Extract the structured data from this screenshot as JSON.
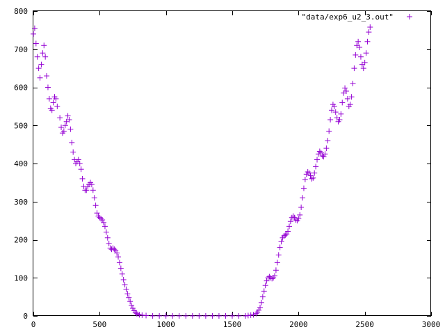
{
  "chart_data": {
    "type": "scatter",
    "title": "",
    "xlabel": "",
    "ylabel": "",
    "xlim": [
      0,
      3000
    ],
    "ylim": [
      0,
      800
    ],
    "x_ticks": [
      0,
      500,
      1000,
      1500,
      2000,
      2500,
      3000
    ],
    "y_ticks": [
      0,
      100,
      200,
      300,
      400,
      500,
      600,
      700,
      800
    ],
    "x_tick_labels": [
      "0",
      "500",
      "1000",
      "1500",
      "2000",
      "2500",
      "3000"
    ],
    "y_tick_labels": [
      "0",
      "100",
      "200",
      "300",
      "400",
      "500",
      "600",
      "700",
      "800"
    ],
    "grid": false,
    "legend_position": "top-right",
    "marker": "plus",
    "series": [
      {
        "name": "\"data/exp6_u2_3.out\"",
        "color": "#9400d3",
        "points": [
          [
            0,
            740
          ],
          [
            10,
            755
          ],
          [
            20,
            715
          ],
          [
            30,
            680
          ],
          [
            40,
            650
          ],
          [
            50,
            625
          ],
          [
            60,
            660
          ],
          [
            70,
            690
          ],
          [
            80,
            710
          ],
          [
            90,
            680
          ],
          [
            100,
            630
          ],
          [
            110,
            600
          ],
          [
            120,
            570
          ],
          [
            130,
            545
          ],
          [
            140,
            540
          ],
          [
            150,
            560
          ],
          [
            160,
            575
          ],
          [
            170,
            570
          ],
          [
            180,
            550
          ],
          [
            200,
            520
          ],
          [
            210,
            495
          ],
          [
            220,
            480
          ],
          [
            230,
            485
          ],
          [
            240,
            500
          ],
          [
            250,
            510
          ],
          [
            260,
            525
          ],
          [
            270,
            515
          ],
          [
            280,
            490
          ],
          [
            290,
            455
          ],
          [
            300,
            430
          ],
          [
            310,
            410
          ],
          [
            320,
            400
          ],
          [
            330,
            405
          ],
          [
            340,
            410
          ],
          [
            350,
            400
          ],
          [
            360,
            385
          ],
          [
            370,
            360
          ],
          [
            380,
            340
          ],
          [
            390,
            330
          ],
          [
            400,
            330
          ],
          [
            410,
            340
          ],
          [
            420,
            345
          ],
          [
            430,
            350
          ],
          [
            440,
            345
          ],
          [
            450,
            330
          ],
          [
            460,
            310
          ],
          [
            470,
            290
          ],
          [
            480,
            270
          ],
          [
            490,
            262
          ],
          [
            500,
            258
          ],
          [
            510,
            255
          ],
          [
            520,
            252
          ],
          [
            530,
            245
          ],
          [
            540,
            235
          ],
          [
            550,
            220
          ],
          [
            560,
            205
          ],
          [
            570,
            190
          ],
          [
            580,
            178
          ],
          [
            590,
            175
          ],
          [
            600,
            178
          ],
          [
            610,
            175
          ],
          [
            620,
            172
          ],
          [
            630,
            165
          ],
          [
            640,
            155
          ],
          [
            650,
            140
          ],
          [
            660,
            125
          ],
          [
            670,
            110
          ],
          [
            680,
            95
          ],
          [
            690,
            82
          ],
          [
            700,
            70
          ],
          [
            710,
            58
          ],
          [
            720,
            48
          ],
          [
            730,
            38
          ],
          [
            740,
            28
          ],
          [
            750,
            20
          ],
          [
            760,
            14
          ],
          [
            770,
            9
          ],
          [
            780,
            6
          ],
          [
            790,
            4
          ],
          [
            800,
            3
          ],
          [
            820,
            2
          ],
          [
            850,
            1
          ],
          [
            900,
            0
          ],
          [
            950,
            0
          ],
          [
            1000,
            0
          ],
          [
            1050,
            0
          ],
          [
            1100,
            0
          ],
          [
            1150,
            0
          ],
          [
            1200,
            0
          ],
          [
            1250,
            0
          ],
          [
            1300,
            0
          ],
          [
            1350,
            0
          ],
          [
            1400,
            0
          ],
          [
            1450,
            0
          ],
          [
            1500,
            0
          ],
          [
            1550,
            0
          ],
          [
            1600,
            0
          ],
          [
            1620,
            1
          ],
          [
            1640,
            2
          ],
          [
            1660,
            3
          ],
          [
            1680,
            6
          ],
          [
            1690,
            10
          ],
          [
            1700,
            15
          ],
          [
            1710,
            22
          ],
          [
            1720,
            35
          ],
          [
            1730,
            50
          ],
          [
            1740,
            65
          ],
          [
            1750,
            80
          ],
          [
            1760,
            92
          ],
          [
            1770,
            100
          ],
          [
            1780,
            103
          ],
          [
            1790,
            100
          ],
          [
            1800,
            98
          ],
          [
            1810,
            100
          ],
          [
            1820,
            105
          ],
          [
            1830,
            120
          ],
          [
            1840,
            140
          ],
          [
            1850,
            160
          ],
          [
            1860,
            180
          ],
          [
            1870,
            195
          ],
          [
            1880,
            205
          ],
          [
            1890,
            210
          ],
          [
            1900,
            212
          ],
          [
            1910,
            215
          ],
          [
            1920,
            222
          ],
          [
            1930,
            235
          ],
          [
            1940,
            248
          ],
          [
            1950,
            258
          ],
          [
            1960,
            262
          ],
          [
            1970,
            258
          ],
          [
            1980,
            252
          ],
          [
            1990,
            250
          ],
          [
            2000,
            255
          ],
          [
            2010,
            265
          ],
          [
            2020,
            285
          ],
          [
            2030,
            310
          ],
          [
            2040,
            335
          ],
          [
            2050,
            358
          ],
          [
            2060,
            372
          ],
          [
            2070,
            378
          ],
          [
            2080,
            375
          ],
          [
            2090,
            368
          ],
          [
            2100,
            360
          ],
          [
            2110,
            362
          ],
          [
            2120,
            375
          ],
          [
            2130,
            392
          ],
          [
            2140,
            410
          ],
          [
            2150,
            425
          ],
          [
            2160,
            432
          ],
          [
            2170,
            428
          ],
          [
            2180,
            420
          ],
          [
            2190,
            418
          ],
          [
            2200,
            425
          ],
          [
            2210,
            440
          ],
          [
            2220,
            460
          ],
          [
            2230,
            485
          ],
          [
            2240,
            515
          ],
          [
            2250,
            540
          ],
          [
            2260,
            555
          ],
          [
            2270,
            550
          ],
          [
            2280,
            535
          ],
          [
            2290,
            520
          ],
          [
            2300,
            510
          ],
          [
            2310,
            515
          ],
          [
            2320,
            530
          ],
          [
            2330,
            560
          ],
          [
            2340,
            585
          ],
          [
            2350,
            598
          ],
          [
            2360,
            590
          ],
          [
            2370,
            570
          ],
          [
            2380,
            550
          ],
          [
            2390,
            555
          ],
          [
            2400,
            575
          ],
          [
            2410,
            610
          ],
          [
            2420,
            650
          ],
          [
            2430,
            685
          ],
          [
            2440,
            710
          ],
          [
            2450,
            720
          ],
          [
            2460,
            705
          ],
          [
            2470,
            680
          ],
          [
            2480,
            660
          ],
          [
            2490,
            650
          ],
          [
            2500,
            665
          ],
          [
            2510,
            690
          ],
          [
            2520,
            720
          ],
          [
            2530,
            745
          ],
          [
            2540,
            758
          ]
        ]
      }
    ]
  }
}
